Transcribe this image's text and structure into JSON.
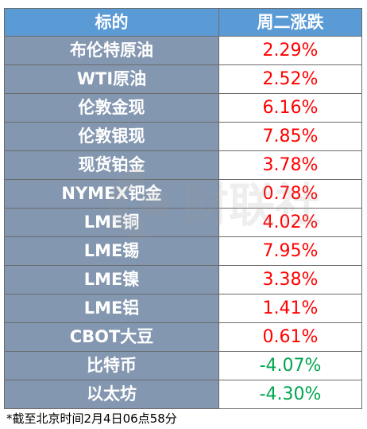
{
  "table": {
    "headers": [
      "标的",
      "周二涨跌"
    ],
    "rows": [
      {
        "name": "布伦特原油",
        "change": "2.29%",
        "direction": "up"
      },
      {
        "name": "WTI原油",
        "change": "2.52%",
        "direction": "up"
      },
      {
        "name": "伦敦金现",
        "change": "6.16%",
        "direction": "up"
      },
      {
        "name": "伦敦银现",
        "change": "7.85%",
        "direction": "up"
      },
      {
        "name": "现货铂金",
        "change": "3.78%",
        "direction": "up"
      },
      {
        "name": "NYMEX钯金",
        "change": "0.78%",
        "direction": "up"
      },
      {
        "name": "LME铜",
        "change": "4.02%",
        "direction": "up"
      },
      {
        "name": "LME锡",
        "change": "7.95%",
        "direction": "up"
      },
      {
        "name": "LME镍",
        "change": "3.38%",
        "direction": "up"
      },
      {
        "name": "LME铝",
        "change": "1.41%",
        "direction": "up"
      },
      {
        "name": "CBOT大豆",
        "change": "0.61%",
        "direction": "up"
      },
      {
        "name": "比特币",
        "change": "-4.07%",
        "direction": "down"
      },
      {
        "name": "以太坊",
        "change": "-4.30%",
        "direction": "down"
      }
    ]
  },
  "footnote": "*截至北京时间2月4日06点58分",
  "watermark": {
    "text": "财联社"
  },
  "colors": {
    "header_bg": "#5b9bd5",
    "name_bg": "#8497b0",
    "up": "#ff0000",
    "down": "#00a650"
  }
}
